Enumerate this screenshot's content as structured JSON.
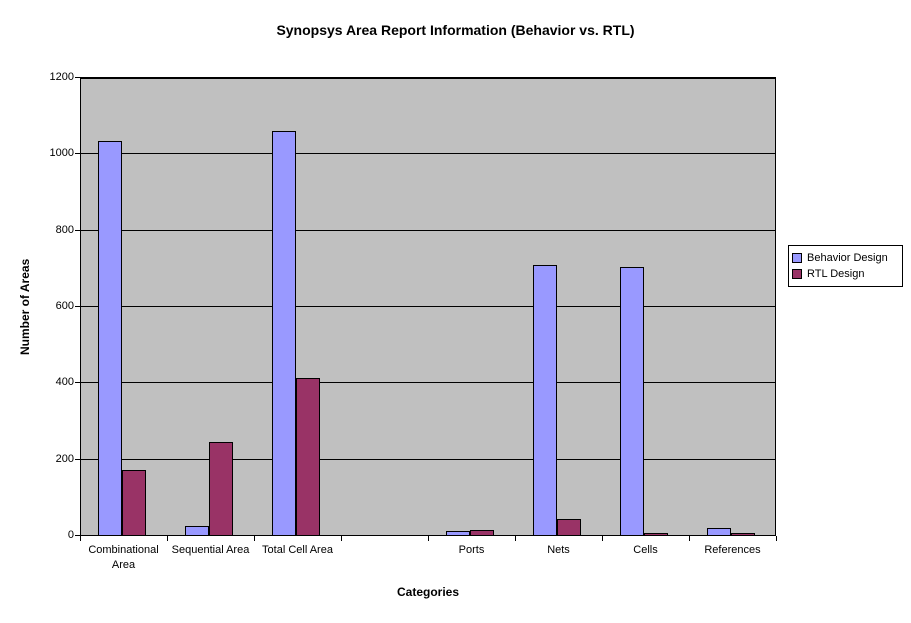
{
  "title": "Synopsys Area Report Information (Behavior vs. RTL)",
  "chart_data": {
    "type": "bar",
    "title": "Synopsys Area Report Information (Behavior vs. RTL)",
    "xlabel": "Categories",
    "ylabel": "Number of Areas",
    "categories": [
      "Combinational Area",
      "Sequential Area",
      "Total Cell Area",
      "",
      "Ports",
      "Nets",
      "Cells",
      "References"
    ],
    "series": [
      {
        "name": "Behavior Design",
        "color": "#9999FF",
        "values": [
          1035,
          25,
          1060,
          null,
          12,
          710,
          705,
          20
        ]
      },
      {
        "name": "RTL Design",
        "color": "#993366",
        "values": [
          172,
          245,
          415,
          null,
          15,
          45,
          8,
          7
        ]
      }
    ],
    "ylim": [
      0,
      1200
    ],
    "yticks": [
      0,
      200,
      400,
      600,
      800,
      1000,
      1200
    ],
    "grid": true,
    "legend_position": "right",
    "plot_background": "#C0C0C0",
    "chart_background": "#FFFFFF"
  }
}
